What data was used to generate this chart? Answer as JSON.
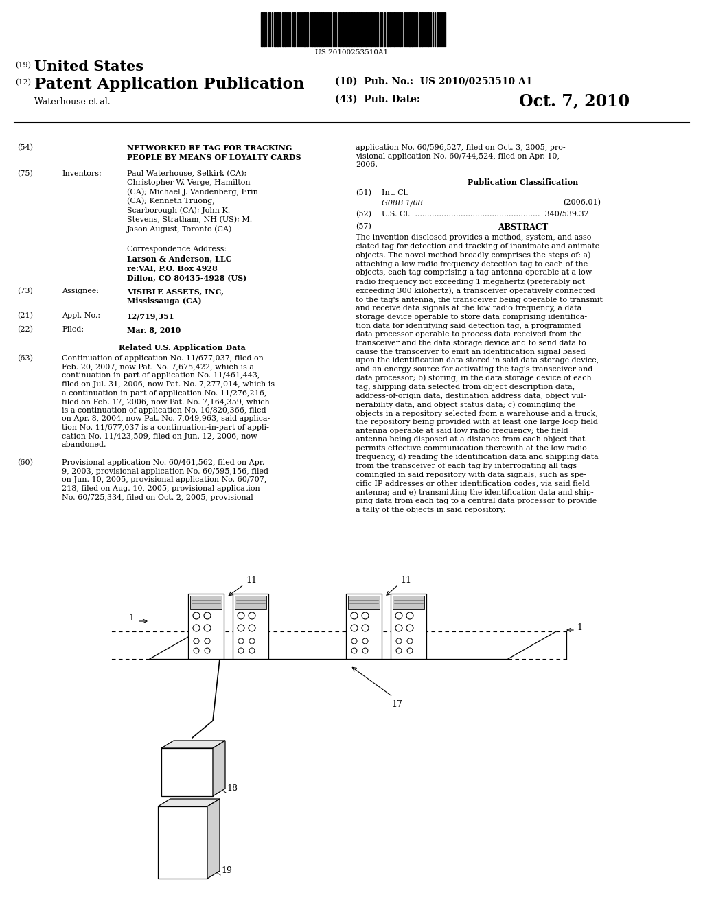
{
  "background_color": "#ffffff",
  "barcode_text": "US 20100253510A1",
  "section54_title": "NETWORKED RF TAG FOR TRACKING\nPEOPLE BY MEANS OF LOYALTY CARDS",
  "section75_text": "Paul Waterhouse, Selkirk (CA);\nChristopher W. Verge, Hamilton\n(CA); Michael J. Vandenberg, Erin\n(CA); Kenneth Truong,\nScarborough (CA); John K.\nStevens, Stratham, NH (US); M.\nJason August, Toronto (CA)",
  "corr_text": "Larson & Anderson, LLC\nre:VAI, P.O. Box 4928\nDillon, CO 80435-4928 (US)",
  "section73_text": "VISIBLE ASSETS, INC,\nMississauga (CA)",
  "section21_text": "12/719,351",
  "section22_text": "Mar. 8, 2010",
  "section63_text": "Continuation of application No. 11/677,037, filed on\nFeb. 20, 2007, now Pat. No. 7,675,422, which is a\ncontinuation-in-part of application No. 11/461,443,\nfiled on Jul. 31, 2006, now Pat. No. 7,277,014, which is\na continuation-in-part of application No. 11/276,216,\nfiled on Feb. 17, 2006, now Pat. No. 7,164,359, which\nis a continuation of application No. 10/820,366, filed\non Apr. 8, 2004, now Pat. No. 7,049,963, said applica-\ntion No. 11/677,037 is a continuation-in-part of appli-\ncation No. 11/423,509, filed on Jun. 12, 2006, now\nabandoned.",
  "section60_text": "Provisional application No. 60/461,562, filed on Apr.\n9, 2003, provisional application No. 60/595,156, filed\non Jun. 10, 2005, provisional application No. 60/707,\n218, filed on Aug. 10, 2005, provisional application\nNo. 60/725,334, filed on Oct. 2, 2005, provisional",
  "right_col_top": "application No. 60/596,527, filed on Oct. 3, 2005, pro-\nvisional application No. 60/744,524, filed on Apr. 10,\n2006.",
  "abstract_text": "The invention disclosed provides a method, system, and asso-\nciated tag for detection and tracking of inanimate and animate\nobjects. The novel method broadly comprises the steps of: a)\nattaching a low radio frequency detection tag to each of the\nobjects, each tag comprising a tag antenna operable at a low\nradio frequency not exceeding 1 megahertz (preferably not\nexceeding 300 kilohertz), a transceiver operatively connected\nto the tag's antenna, the transceiver being operable to transmit\nand receive data signals at the low radio frequency, a data\nstorage device operable to store data comprising identifica-\ntion data for identifying said detection tag, a programmed\ndata processor operable to process data received from the\ntransceiver and the data storage device and to send data to\ncause the transceiver to emit an identification signal based\nupon the identification data stored in said data storage device,\nand an energy source for activating the tag's transceiver and\ndata processor; b) storing, in the data storage device of each\ntag, shipping data selected from object description data,\naddress-of-origin data, destination address data, object vul-\nnerability data, and object status data; c) comingling the\nobjects in a repository selected from a warehouse and a truck,\nthe repository being provided with at least one large loop field\nantenna operable at said low radio frequency; the field\nantenna being disposed at a distance from each object that\npermits effective communication therewith at the low radio\nfrequency, d) reading the identification data and shipping data\nfrom the transceiver of each tag by interrogating all tags\ncomingled in said repository with data signals, such as spe-\ncific IP addresses or other identification codes, via said field\nantenna; and e) transmitting the identification data and ship-\nping data from each tag to a central data processor to provide\na tally of the objects in said repository."
}
